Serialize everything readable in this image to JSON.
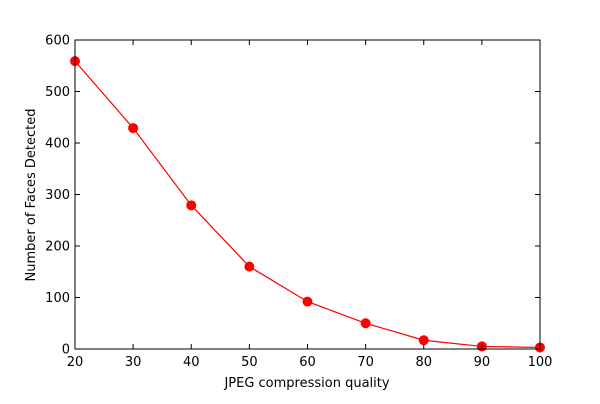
{
  "chart_data": {
    "type": "line",
    "title": "",
    "xlabel": "JPEG compression quality",
    "ylabel": "Number of Faces Detected",
    "xlim": [
      20,
      100
    ],
    "ylim": [
      0,
      600
    ],
    "xticks": [
      20,
      30,
      40,
      50,
      60,
      70,
      80,
      90,
      100
    ],
    "yticks": [
      0,
      100,
      200,
      300,
      400,
      500,
      600
    ],
    "grid": false,
    "legend": "none",
    "series": [
      {
        "color": "#ff0000",
        "marker": "circle",
        "x": [
          20,
          30,
          40,
          50,
          60,
          70,
          80,
          90,
          100
        ],
        "y": [
          559,
          429,
          279,
          160,
          92,
          50,
          17,
          5,
          3
        ]
      }
    ]
  }
}
